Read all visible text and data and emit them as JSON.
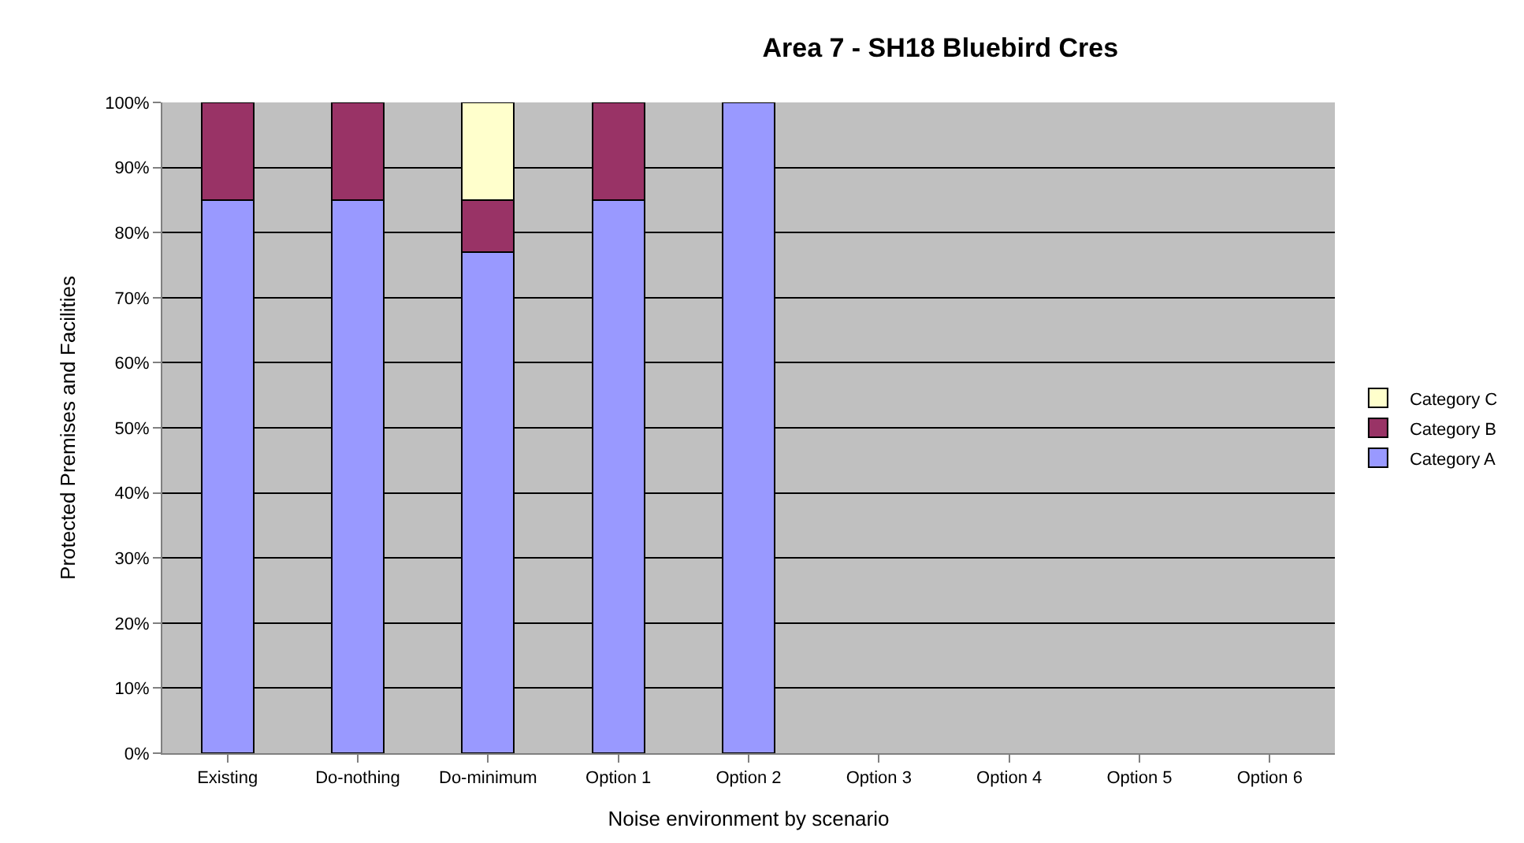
{
  "chart_data": {
    "type": "bar",
    "stacked": true,
    "title": "Area 7 - SH18 Bluebird Cres",
    "xlabel": "Noise environment by scenario",
    "ylabel": "Protected Premises and Facilities",
    "categories": [
      "Existing",
      "Do-nothing",
      "Do-minimum",
      "Option 1",
      "Option 2",
      "Option 3",
      "Option 4",
      "Option 5",
      "Option 6"
    ],
    "series": [
      {
        "name": "Category A",
        "color": "#9999ff",
        "values": [
          85,
          85,
          77,
          85,
          100,
          null,
          null,
          null,
          null
        ]
      },
      {
        "name": "Category B",
        "color": "#993366",
        "values": [
          15,
          15,
          8,
          15,
          null,
          null,
          null,
          null,
          null
        ]
      },
      {
        "name": "Category C",
        "color": "#ffffcc",
        "values": [
          null,
          null,
          15,
          null,
          null,
          null,
          null,
          null,
          null
        ]
      }
    ],
    "ylim": [
      0,
      100
    ],
    "yticks": [
      {
        "value": 0,
        "label": "0%"
      },
      {
        "value": 10,
        "label": "10%"
      },
      {
        "value": 20,
        "label": "20%"
      },
      {
        "value": 30,
        "label": "30%"
      },
      {
        "value": 40,
        "label": "40%"
      },
      {
        "value": 50,
        "label": "50%"
      },
      {
        "value": 60,
        "label": "60%"
      },
      {
        "value": 70,
        "label": "70%"
      },
      {
        "value": 80,
        "label": "80%"
      },
      {
        "value": 90,
        "label": "90%"
      },
      {
        "value": 100,
        "label": "100%"
      }
    ],
    "grid": "y",
    "legend": "right"
  }
}
